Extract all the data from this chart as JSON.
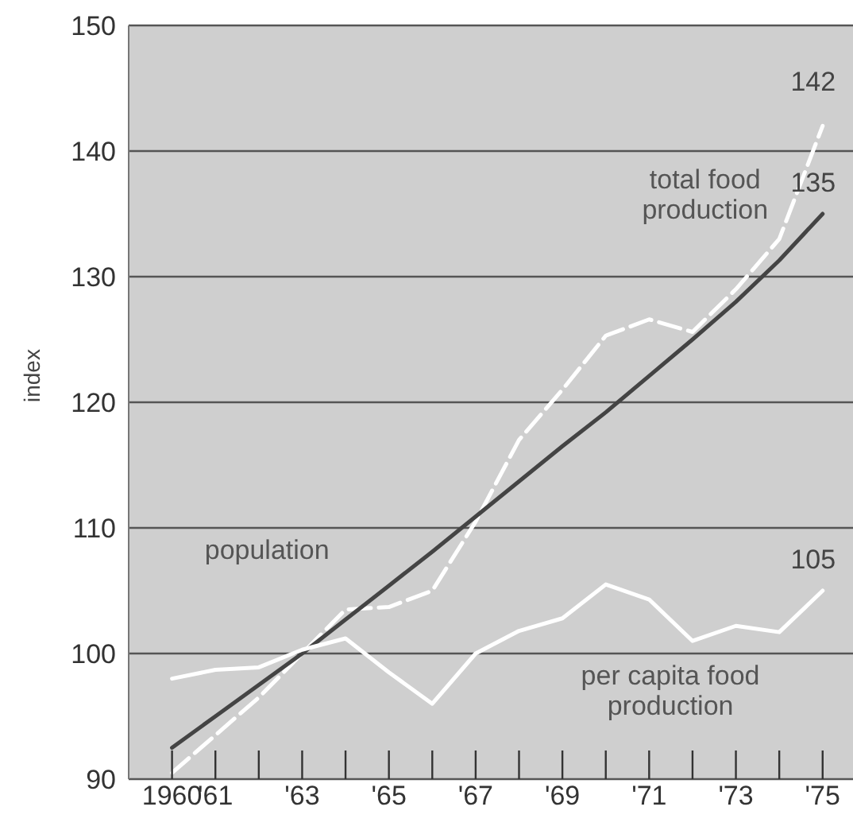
{
  "chart_data": {
    "type": "line",
    "ylabel": "index",
    "x": [
      1960,
      1961,
      1962,
      1963,
      1964,
      1965,
      1966,
      1967,
      1968,
      1969,
      1970,
      1971,
      1972,
      1973,
      1974,
      1975
    ],
    "series": [
      {
        "name": "total food production",
        "color": "#ffffff",
        "line_style": "dashed",
        "values": [
          90.5,
          93.5,
          96.5,
          100,
          103.5,
          103.7,
          105,
          110.5,
          117,
          121,
          125.3,
          126.6,
          125.6,
          129,
          133,
          142
        ],
        "value_labels": [
          null,
          null,
          null,
          null,
          null,
          null,
          null,
          null,
          null,
          null,
          null,
          null,
          null,
          null,
          null,
          "142"
        ]
      },
      {
        "name": "population",
        "color": "#444444",
        "line_style": "solid",
        "values": [
          92.5,
          95,
          97.5,
          100,
          102.7,
          105.4,
          108.1,
          110.9,
          113.7,
          116.5,
          119.2,
          122.1,
          125,
          128,
          131.3,
          135
        ],
        "value_labels": [
          null,
          null,
          null,
          null,
          null,
          null,
          null,
          null,
          null,
          null,
          null,
          null,
          null,
          null,
          null,
          "135"
        ]
      },
      {
        "name": "per capita food production",
        "color": "#ffffff",
        "line_style": "solid",
        "values": [
          98,
          98.7,
          98.9,
          100.3,
          101.2,
          98.5,
          96,
          100,
          101.8,
          102.8,
          105.5,
          104.3,
          101,
          102.2,
          101.7,
          105
        ],
        "value_labels": [
          null,
          null,
          null,
          null,
          null,
          null,
          null,
          null,
          null,
          null,
          null,
          null,
          null,
          null,
          null,
          "105"
        ]
      }
    ],
    "xlim": [
      1959,
      1975.7
    ],
    "xticks": [
      {
        "value": 1960,
        "label": "1960"
      },
      {
        "value": 1961,
        "label": "'61"
      },
      {
        "value": 1963,
        "label": "'63"
      },
      {
        "value": 1965,
        "label": "'65"
      },
      {
        "value": 1967,
        "label": "'67"
      },
      {
        "value": 1969,
        "label": "'69"
      },
      {
        "value": 1971,
        "label": "'71"
      },
      {
        "value": 1973,
        "label": "'73"
      },
      {
        "value": 1975,
        "label": "'75"
      }
    ],
    "ylim": [
      90,
      150
    ],
    "yticks": [
      90,
      100,
      110,
      120,
      130,
      140,
      150
    ],
    "grid": "y",
    "legend": false,
    "marker": "none"
  }
}
